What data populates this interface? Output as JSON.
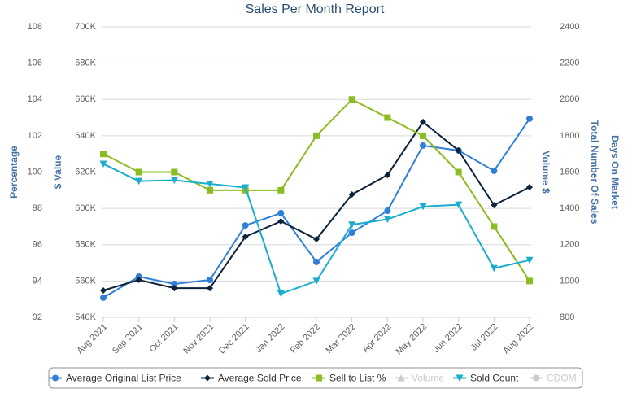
{
  "chart_data": {
    "type": "line",
    "title": "Sales Per Month Report",
    "categories": [
      "Aug 2021",
      "Sep 2021",
      "Oct 2021",
      "Nov 2021",
      "Dec 2021",
      "Jan 2022",
      "Feb 2022",
      "Mar 2022",
      "Apr 2022",
      "May 2022",
      "Jun 2022",
      "Jul 2022",
      "Aug 2022"
    ],
    "grid": true,
    "axes": [
      {
        "title": "Percentage",
        "side": "left",
        "lim": [
          92,
          108
        ],
        "ticks": [
          92,
          94,
          96,
          98,
          100,
          102,
          104,
          106,
          108
        ]
      },
      {
        "title": "$ Value",
        "side": "left",
        "lim": [
          540000,
          700000
        ],
        "ticks": [
          {
            "value": 540000,
            "label": "540K"
          },
          {
            "value": 560000,
            "label": "560K"
          },
          {
            "value": 580000,
            "label": "580K"
          },
          {
            "value": 600000,
            "label": "600K"
          },
          {
            "value": 620000,
            "label": "620K"
          },
          {
            "value": 640000,
            "label": "640K"
          },
          {
            "value": 660000,
            "label": "660K"
          },
          {
            "value": 680000,
            "label": "680K"
          },
          {
            "value": 700000,
            "label": "700K"
          }
        ]
      },
      {
        "title": "Volume $",
        "side": "right"
      },
      {
        "title": "Total Number Of Sales",
        "side": "right",
        "lim": [
          800,
          2400
        ],
        "ticks": [
          800,
          1000,
          1200,
          1400,
          1600,
          1800,
          2000,
          2200,
          2400
        ]
      },
      {
        "title": "Days On Market",
        "side": "right"
      }
    ],
    "series": [
      {
        "name": "Average Original List Price",
        "color": "#2f7ed8",
        "marker": "circle",
        "axis": 1,
        "visible": true,
        "values": [
          550800,
          562400,
          558400,
          560600,
          590600,
          597400,
          570500,
          586600,
          598700,
          634600,
          631900,
          620700,
          649400
        ]
      },
      {
        "name": "Average Sold Price",
        "color": "#0d233a",
        "marker": "diamond",
        "axis": 1,
        "visible": true,
        "values": [
          554800,
          560600,
          556100,
          556100,
          584400,
          592900,
          583000,
          607700,
          618400,
          647600,
          631900,
          601800,
          611700
        ]
      },
      {
        "name": "Sell to List %",
        "color": "#8bbc21",
        "marker": "square",
        "axis": 0,
        "visible": true,
        "values": [
          101,
          100,
          100,
          99,
          99,
          99,
          102,
          104,
          103,
          102,
          100,
          97,
          94
        ]
      },
      {
        "name": "Volume",
        "color": "#cccccc",
        "marker": "triangle",
        "axis": 2,
        "visible": false,
        "values": [
          null,
          null,
          null,
          null,
          null,
          null,
          null,
          null,
          null,
          null,
          null,
          null,
          null
        ]
      },
      {
        "name": "Sold Count",
        "color": "#1aadce",
        "marker": "triangle-down",
        "axis": 3,
        "visible": true,
        "values": [
          1645,
          1550,
          1555,
          1535,
          1515,
          930,
          1000,
          1310,
          1340,
          1410,
          1420,
          1070,
          1115
        ]
      },
      {
        "name": "CDOM",
        "color": "#cccccc",
        "marker": "circle",
        "axis": 4,
        "visible": false,
        "values": [
          null,
          null,
          null,
          null,
          null,
          null,
          null,
          null,
          null,
          null,
          null,
          null,
          null
        ]
      }
    ]
  }
}
